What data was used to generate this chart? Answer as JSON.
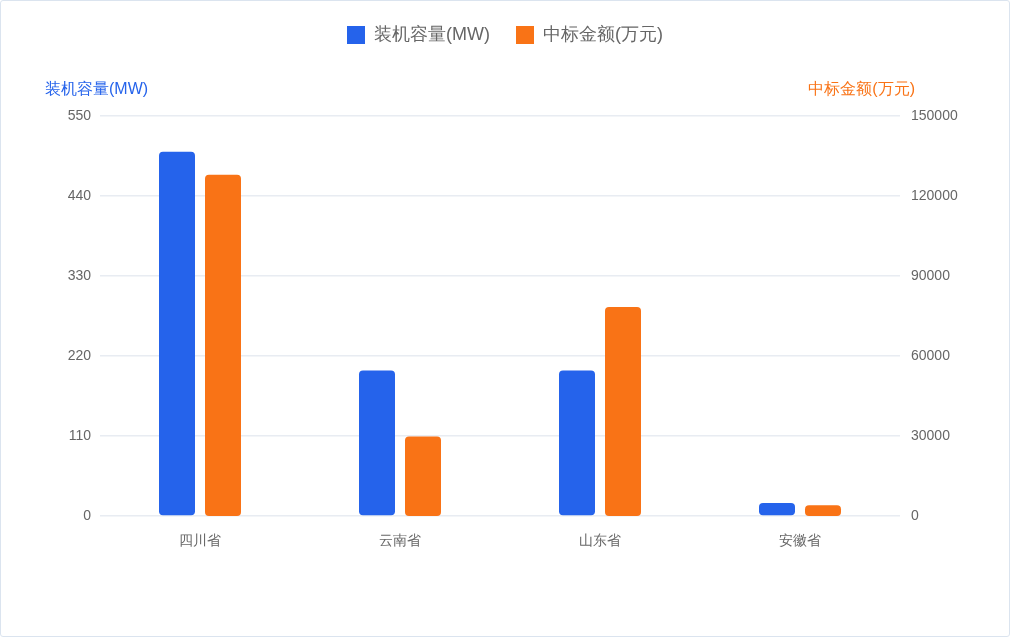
{
  "chart_data": {
    "type": "bar",
    "categories": [
      "四川省",
      "云南省",
      "山东省",
      "安徽省"
    ],
    "series": [
      {
        "name": "装机容量(MW)",
        "color": "#2563eb",
        "values": [
          501,
          200,
          200,
          18
        ]
      },
      {
        "name": "中标金额(万元)",
        "color": "#f97316",
        "values": [
          128000,
          29800,
          78400,
          4000
        ],
        "axis": "y2"
      }
    ],
    "ylabel": "装机容量(MW)",
    "y2label": "中标金额(万元)",
    "ylim": [
      0,
      550
    ],
    "yticks": [
      0,
      110,
      220,
      330,
      440,
      550
    ],
    "y2lim": [
      0,
      150000
    ],
    "y2ticks": [
      0,
      30000,
      60000,
      90000,
      120000,
      150000
    ],
    "grid": "y",
    "legend": "top"
  }
}
